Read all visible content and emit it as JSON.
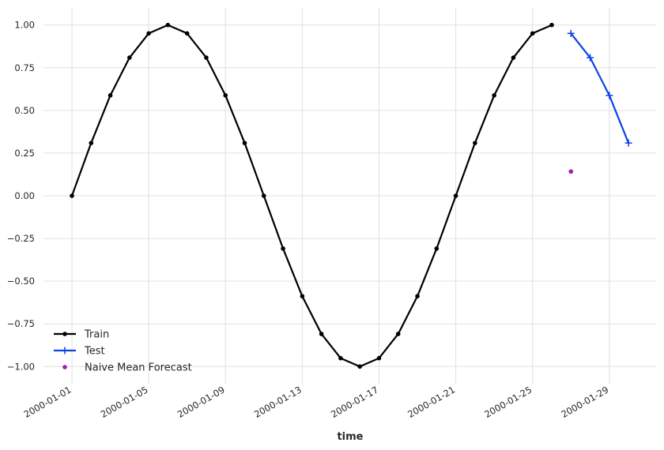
{
  "chart_data": {
    "type": "line",
    "xlabel": "time",
    "ylabel": "",
    "title": "",
    "ylim": [
      -1.1,
      1.1
    ],
    "grid": true,
    "legend_position": "lower-left",
    "x_tick_labels": [
      "2000-01-01",
      "2000-01-05",
      "2000-01-09",
      "2000-01-13",
      "2000-01-17",
      "2000-01-21",
      "2000-01-25",
      "2000-01-29"
    ],
    "y_tick_labels": [
      "1.00",
      "0.75",
      "0.50",
      "0.25",
      "0.00",
      "−0.25",
      "−0.50",
      "−0.75",
      "−1.00"
    ],
    "y_ticks": [
      1.0,
      0.75,
      0.5,
      0.25,
      0.0,
      -0.25,
      -0.5,
      -0.75,
      -1.0
    ],
    "series": [
      {
        "name": "Train",
        "color": "#000000",
        "marker": "dot",
        "x": [
          "2000-01-01",
          "2000-01-02",
          "2000-01-03",
          "2000-01-04",
          "2000-01-05",
          "2000-01-06",
          "2000-01-07",
          "2000-01-08",
          "2000-01-09",
          "2000-01-10",
          "2000-01-11",
          "2000-01-12",
          "2000-01-13",
          "2000-01-14",
          "2000-01-15",
          "2000-01-16",
          "2000-01-17",
          "2000-01-18",
          "2000-01-19",
          "2000-01-20",
          "2000-01-21",
          "2000-01-22",
          "2000-01-23",
          "2000-01-24",
          "2000-01-25",
          "2000-01-26"
        ],
        "y": [
          0.0,
          0.309,
          0.588,
          0.809,
          0.951,
          1.0,
          0.951,
          0.809,
          0.588,
          0.309,
          0.0,
          -0.309,
          -0.588,
          -0.809,
          -0.951,
          -1.0,
          -0.951,
          -0.809,
          -0.588,
          -0.309,
          0.0,
          0.309,
          0.588,
          0.809,
          0.951,
          1.0
        ]
      },
      {
        "name": "Test",
        "color": "#0a43e6",
        "marker": "plus",
        "x": [
          "2000-01-27",
          "2000-01-28",
          "2000-01-29",
          "2000-01-30"
        ],
        "y": [
          0.951,
          0.809,
          0.588,
          0.309
        ]
      },
      {
        "name": "Naive Mean Forecast",
        "color": "#a31caf",
        "marker": "dot",
        "line": false,
        "x": [
          "2000-01-27"
        ],
        "y": [
          0.142
        ]
      }
    ]
  }
}
